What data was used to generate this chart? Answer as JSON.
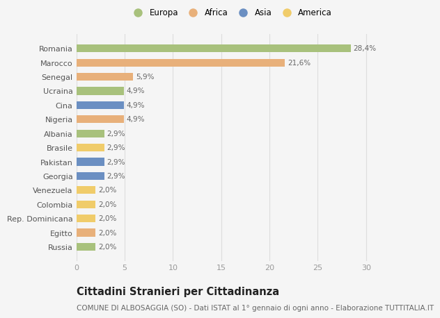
{
  "countries": [
    "Romania",
    "Marocco",
    "Senegal",
    "Ucraina",
    "Cina",
    "Nigeria",
    "Albania",
    "Brasile",
    "Pakistan",
    "Georgia",
    "Venezuela",
    "Colombia",
    "Rep. Dominicana",
    "Egitto",
    "Russia"
  ],
  "values": [
    28.4,
    21.6,
    5.9,
    4.9,
    4.9,
    4.9,
    2.9,
    2.9,
    2.9,
    2.9,
    2.0,
    2.0,
    2.0,
    2.0,
    2.0
  ],
  "labels": [
    "28,4%",
    "21,6%",
    "5,9%",
    "4,9%",
    "4,9%",
    "4,9%",
    "2,9%",
    "2,9%",
    "2,9%",
    "2,9%",
    "2,0%",
    "2,0%",
    "2,0%",
    "2,0%",
    "2,0%"
  ],
  "continents": [
    "Europa",
    "Africa",
    "Africa",
    "Europa",
    "Asia",
    "Africa",
    "Europa",
    "America",
    "Asia",
    "Asia",
    "America",
    "America",
    "America",
    "Africa",
    "Europa"
  ],
  "colors": {
    "Europa": "#a8c17c",
    "Africa": "#e8b07a",
    "Asia": "#6b8fc2",
    "America": "#f0cc6a"
  },
  "legend_order": [
    "Europa",
    "Africa",
    "Asia",
    "America"
  ],
  "xlim": [
    0,
    32
  ],
  "xticks": [
    0,
    5,
    10,
    15,
    20,
    25,
    30
  ],
  "title": "Cittadini Stranieri per Cittadinanza",
  "subtitle": "COMUNE DI ALBOSAGGIA (SO) - Dati ISTAT al 1° gennaio di ogni anno - Elaborazione TUTTITALIA.IT",
  "bg_color": "#f5f5f5",
  "grid_color": "#dddddd",
  "label_fontsize": 7.5,
  "ytick_fontsize": 8,
  "xtick_fontsize": 8,
  "title_fontsize": 10.5,
  "subtitle_fontsize": 7.5
}
